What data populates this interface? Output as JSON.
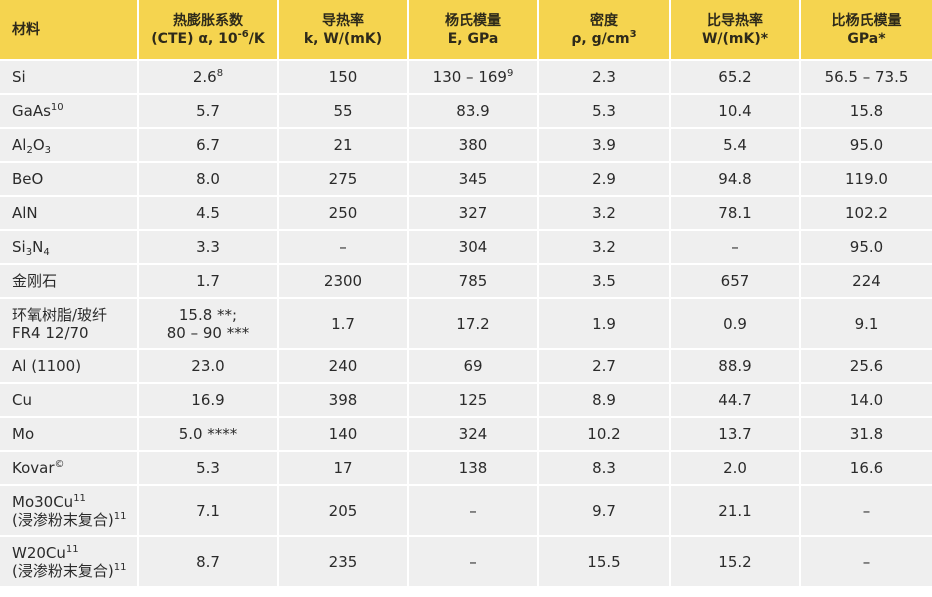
{
  "table": {
    "headers": [
      {
        "line1": "材料",
        "line2": ""
      },
      {
        "line1": "热膨胀系数",
        "line2_pre": "(CTE) α, 10",
        "line2_sup": "-6",
        "line2_post": "/K"
      },
      {
        "line1": "导热率",
        "line2": "k, W/(mK)"
      },
      {
        "line1": "杨氏模量",
        "line2": "E, GPa"
      },
      {
        "line1": "密度",
        "line2_pre": "ρ, g/cm",
        "line2_sup": "3"
      },
      {
        "line1": "比导热率",
        "line2": "W/(mK)*"
      },
      {
        "line1": "比杨氏模量",
        "line2": "GPa*"
      }
    ],
    "rows": [
      {
        "material": "Si",
        "cte": "2.6",
        "cte_note": "8",
        "k": "150",
        "e": "130 – 169",
        "e_note": "9",
        "rho": "2.3",
        "spec_k": "65.2",
        "spec_e": "56.5 – 73.5"
      },
      {
        "material": "GaAs",
        "material_note": "10",
        "cte": "5.7",
        "k": "55",
        "e": "83.9",
        "rho": "5.3",
        "spec_k": "10.4",
        "spec_e": "15.8"
      },
      {
        "material_pre": "Al",
        "material_sub": "2",
        "material_post": "O",
        "material_sub2": "3",
        "cte": "6.7",
        "k": "21",
        "e": "380",
        "rho": "3.9",
        "spec_k": "5.4",
        "spec_e": "95.0"
      },
      {
        "material": "BeO",
        "cte": "8.0",
        "k": "275",
        "e": "345",
        "rho": "2.9",
        "spec_k": "94.8",
        "spec_e": "119.0"
      },
      {
        "material": "AlN",
        "cte": "4.5",
        "k": "250",
        "e": "327",
        "rho": "3.2",
        "spec_k": "78.1",
        "spec_e": "102.2"
      },
      {
        "material_pre": "Si",
        "material_sub": "3",
        "material_post": "N",
        "material_sub2": "4",
        "cte": "3.3",
        "k": "–",
        "e": "304",
        "rho": "3.2",
        "spec_k": "–",
        "spec_e": "95.0"
      },
      {
        "material": "金刚石",
        "cte": "1.7",
        "k": "2300",
        "e": "785",
        "rho": "3.5",
        "spec_k": "657",
        "spec_e": "224"
      },
      {
        "material_line1": "环氧树脂/玻纤",
        "material_line2": "FR4 12/70",
        "cte_line1": "15.8 **;",
        "cte_line2": "80 – 90 ***",
        "k": "1.7",
        "e": "17.2",
        "rho": "1.9",
        "spec_k": "0.9",
        "spec_e": "9.1"
      },
      {
        "material": "Al (1100)",
        "cte": "23.0",
        "k": "240",
        "e": "69",
        "rho": "2.7",
        "spec_k": "88.9",
        "spec_e": "25.6"
      },
      {
        "material": "Cu",
        "cte": "16.9",
        "k": "398",
        "e": "125",
        "rho": "8.9",
        "spec_k": "44.7",
        "spec_e": "14.0"
      },
      {
        "material": "Mo",
        "cte": "5.0 ****",
        "k": "140",
        "e": "324",
        "rho": "10.2",
        "spec_k": "13.7",
        "spec_e": "31.8"
      },
      {
        "material": "Kovar",
        "material_note": "©",
        "cte": "5.3",
        "k": "17",
        "e": "138",
        "rho": "8.3",
        "spec_k": "2.0",
        "spec_e": "16.6"
      },
      {
        "material_line1": "Mo30Cu",
        "material_line1_note": "11",
        "material_line2": "(浸渗粉末复合)",
        "material_line2_note": "11",
        "cte": "7.1",
        "k": "205",
        "e": "–",
        "rho": "9.7",
        "spec_k": "21.1",
        "spec_e": "–"
      },
      {
        "material_line1": "W20Cu",
        "material_line1_note": "11",
        "material_line2": "(浸渗粉末复合)",
        "material_line2_note": "11",
        "cte": "8.7",
        "k": "235",
        "e": "–",
        "rho": "15.5",
        "spec_k": "15.2",
        "spec_e": "–"
      }
    ]
  },
  "colors": {
    "header_bg": "#f5d44f",
    "row_bg": "#efefef",
    "separator": "#ffffff"
  }
}
